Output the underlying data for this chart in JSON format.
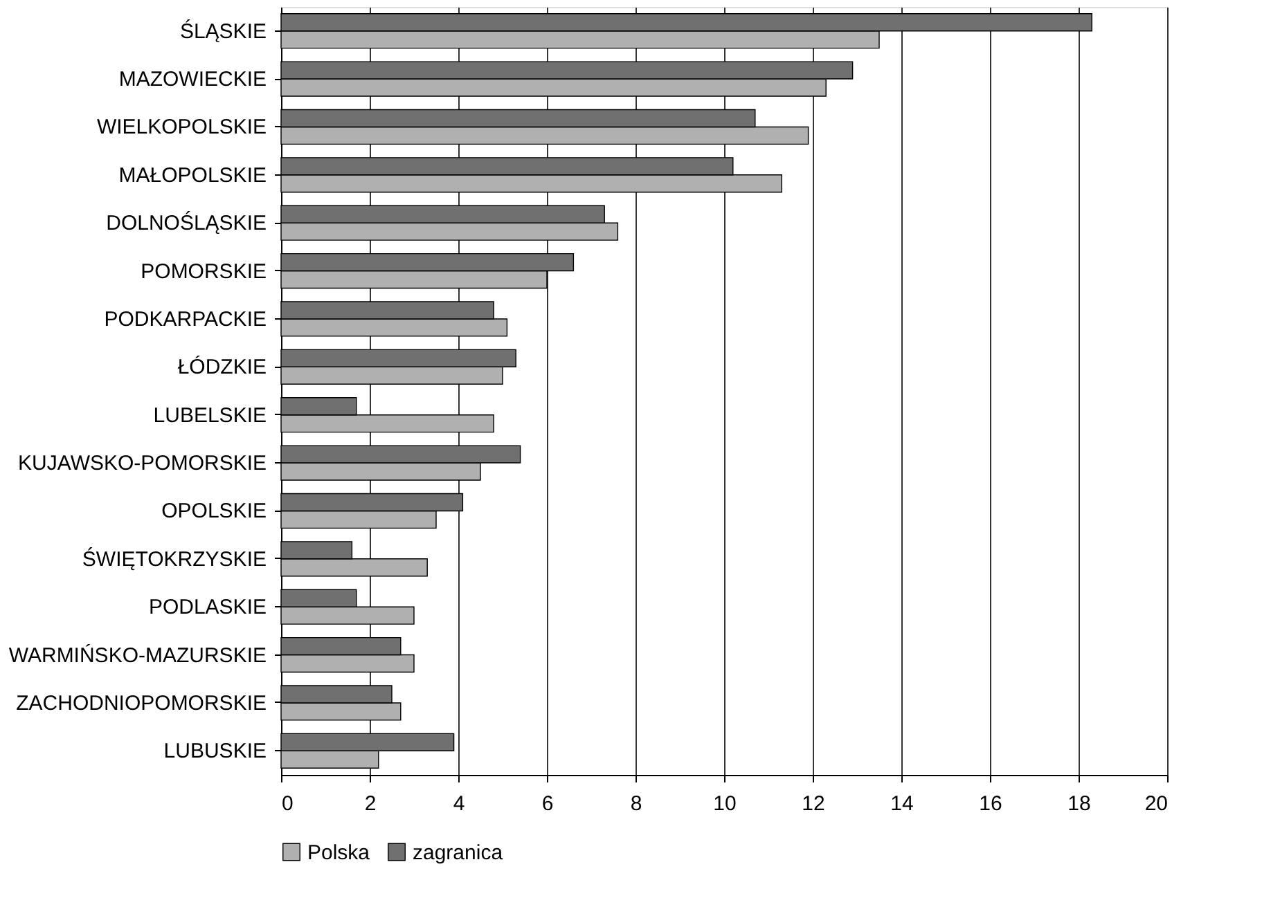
{
  "chart_data": {
    "type": "bar",
    "orientation": "horizontal",
    "categories": [
      "ŚLĄSKIE",
      "MAZOWIECKIE",
      "WIELKOPOLSKIE",
      "MAŁOPOLSKIE",
      "DOLNOŚLĄSKIE",
      "POMORSKIE",
      "PODKARPACKIE",
      "ŁÓDZKIE",
      "LUBELSKIE",
      "KUJAWSKO-POMORSKIE",
      "OPOLSKIE",
      "ŚWIĘTOKRZYSKIE",
      "PODLASKIE",
      "WARMIŃSKO-MAZURSKIE",
      "ZACHODNIOPOMORSKIE",
      "LUBUSKIE"
    ],
    "series": [
      {
        "name": "Polska",
        "color": "#b0b0b0",
        "values": [
          13.5,
          12.3,
          11.9,
          11.3,
          7.6,
          6.0,
          5.1,
          5.0,
          4.8,
          4.5,
          3.5,
          3.3,
          3.0,
          3.0,
          2.7,
          2.2
        ]
      },
      {
        "name": "zagranica",
        "color": "#707070",
        "values": [
          18.3,
          12.9,
          10.7,
          10.2,
          7.3,
          6.6,
          4.8,
          5.3,
          1.7,
          5.4,
          4.1,
          1.6,
          1.7,
          2.7,
          2.5,
          3.9
        ]
      }
    ],
    "xlim": [
      0,
      20
    ],
    "xticks": [
      0,
      2,
      4,
      6,
      8,
      10,
      12,
      14,
      16,
      18,
      20
    ],
    "grid": "x",
    "legend": "bottom"
  }
}
